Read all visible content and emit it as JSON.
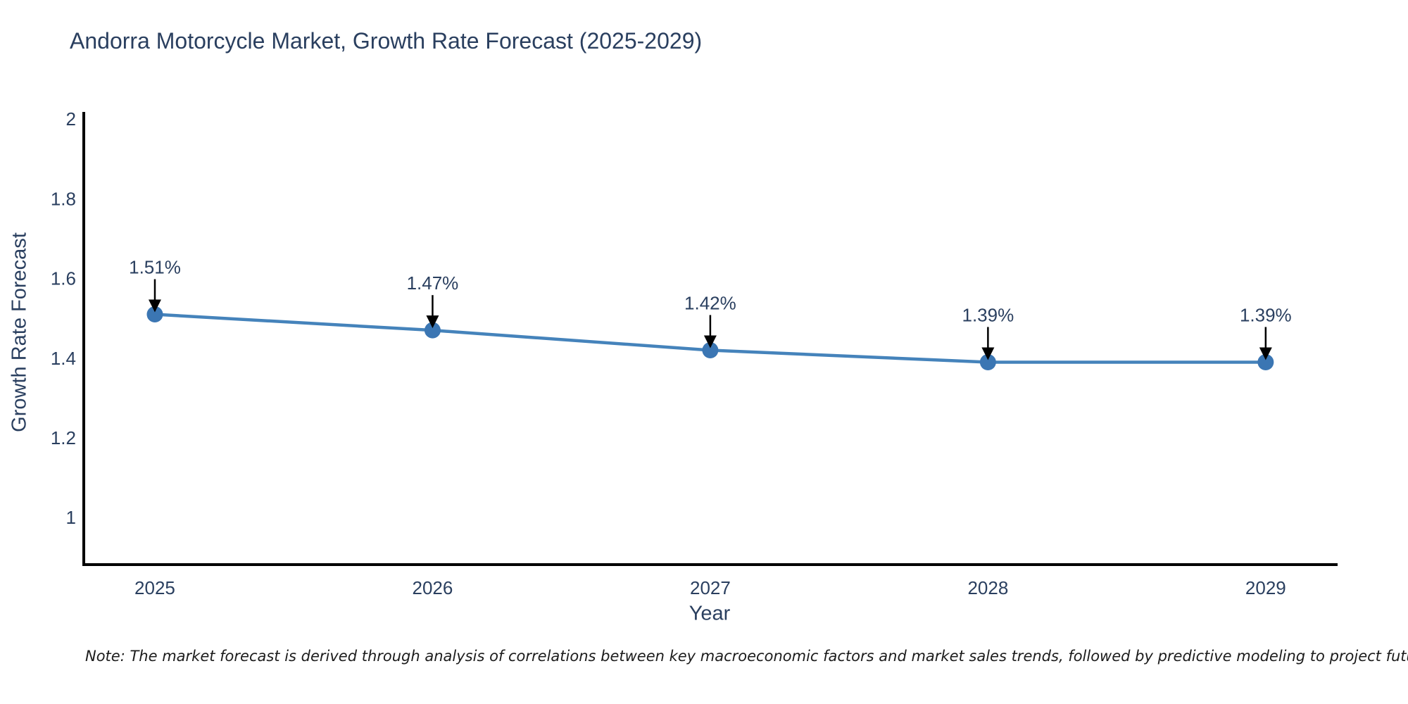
{
  "header": {
    "title": "Andorra Motorcycle Market, Growth Rate Forecast (2025-2029)"
  },
  "chart_data": {
    "type": "line",
    "title": "Andorra Motorcycle Market, Growth Rate Forecast (2025-2029)",
    "xlabel": "Year",
    "ylabel": "Growth Rate Forecast",
    "x": [
      2025,
      2026,
      2027,
      2028,
      2029
    ],
    "x_tick_labels": [
      "2025",
      "2026",
      "2027",
      "2028",
      "2029"
    ],
    "values": [
      1.51,
      1.47,
      1.42,
      1.39,
      1.39
    ],
    "point_labels": [
      "1.51%",
      "1.47%",
      "1.42%",
      "1.39%",
      "1.39%"
    ],
    "yticks": [
      1,
      1.2,
      1.4,
      1.6,
      1.8,
      2
    ],
    "ytick_labels": [
      "1",
      "1.2",
      "1.4",
      "1.6",
      "1.8",
      "2"
    ],
    "ylim": [
      0.882,
      2.018
    ],
    "xlim": [
      2024.744,
      2029.259
    ],
    "grid": false,
    "legend": "none",
    "line_color": "#4583bb",
    "marker_color": "#3b76b3",
    "annotation_arrow_color": "#000000",
    "axis_color": "#000000",
    "tick_label_color": "#2a3f5f"
  },
  "note": {
    "text": "Note: The market forecast is derived through analysis of correlations between key macroeconomic factors and market sales trends, followed by predictive modeling to project future sales"
  }
}
